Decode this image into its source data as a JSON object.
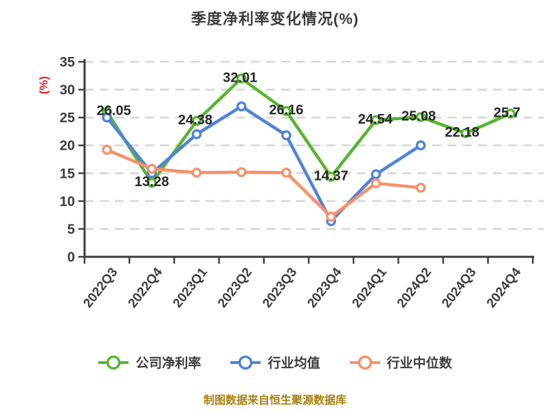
{
  "page": {
    "background": "#ffffff"
  },
  "chart_data": {
    "type": "line",
    "title": "季度净利率变化情况(%)",
    "ylabel": "(%)",
    "footer": "制图数据来自恒生聚源数据库",
    "categories": [
      "2022Q3",
      "2022Q4",
      "2023Q1",
      "2023Q2",
      "2023Q3",
      "2023Q4",
      "2024Q1",
      "2024Q2",
      "2024Q3",
      "2024Q4"
    ],
    "ylim": [
      0,
      35
    ],
    "yticks": [
      0,
      5,
      10,
      15,
      20,
      25,
      30,
      35
    ],
    "grid": "horizontal-dashed",
    "legend_position": "bottom",
    "series": [
      {
        "name": "公司净利率",
        "color": "#5ab432",
        "marker": "circle-white-fill",
        "values": [
          26.05,
          13.28,
          24.38,
          32.01,
          26.16,
          14.37,
          24.54,
          25.08,
          22.18,
          25.7
        ],
        "point_labels": [
          "26.05",
          "13.28",
          "24.38",
          "32.01",
          "26.16",
          "14.37",
          "24.54",
          "25.08",
          "22.18",
          "25.7"
        ]
      },
      {
        "name": "行业均值",
        "color": "#5282d8",
        "marker": "circle-white-fill",
        "values": [
          25,
          15,
          22,
          27,
          21.8,
          6.4,
          14.8,
          20
        ],
        "point_labels": []
      },
      {
        "name": "行业中位数",
        "color": "#f5916b",
        "marker": "circle-white-fill",
        "values": [
          19.2,
          15.8,
          15.1,
          15.2,
          15.1,
          7.2,
          13.2,
          12.4
        ],
        "point_labels": []
      }
    ],
    "style": {
      "axis_color": "#3c3c3c",
      "grid_color": "#d6d6d6",
      "tick_label_color": "#3c3c3c",
      "point_label_color": "#262626",
      "title_color": "#3c3c3c",
      "legend_text_color": "#3c3c3c",
      "ylabel_color": "#e82121",
      "footer_color": "#a8800f"
    }
  }
}
